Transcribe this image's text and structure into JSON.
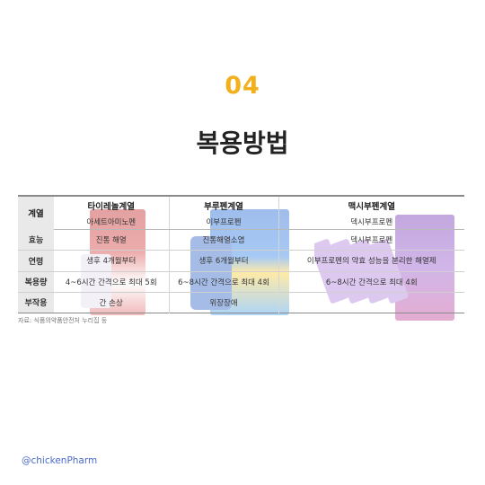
{
  "section": {
    "number": "04",
    "title": "복용방법"
  },
  "table": {
    "headers": [
      "계열",
      "타이레놀계열",
      "부루펜계열",
      "맥시부펜계열"
    ],
    "ingredients": [
      "아세트아미노펜",
      "이부프로펜",
      "덱시부프로펜"
    ],
    "rows": [
      {
        "label": "효능",
        "cells": [
          "진통 해열",
          "진통해열소염",
          "덱시부프로펜"
        ]
      },
      {
        "label": "연령",
        "cells": [
          "생후 4개월부터",
          "생후 6개월부터",
          "이부프로펜의 약효 성능을 분리한 해열제"
        ]
      },
      {
        "label": "복용량",
        "cells": [
          "4~6시간 간격으로 최대 5회",
          "6~8시간 간격으로 최대 4회",
          "6~8시간 간격으로 최대 4회"
        ]
      },
      {
        "label": "부작용",
        "cells": [
          "간 손상",
          "위장장애",
          ""
        ]
      }
    ]
  },
  "source_note": "자료: 식품의약품안전처 누리집 등",
  "handle": "@chickenPharm",
  "colors": {
    "accent": "#f2b01c",
    "title": "#222222",
    "handle": "#4a6ac8"
  }
}
